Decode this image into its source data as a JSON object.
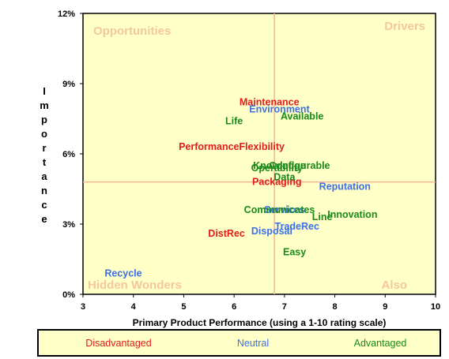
{
  "chart_data": {
    "type": "scatter",
    "xlabel": "Primary Product Performance (using a 1-10 rating scale)",
    "ylabel": "Importance",
    "xlim": [
      3,
      10
    ],
    "ylim": [
      0,
      12
    ],
    "x_ticks": [
      "3",
      "4",
      "5",
      "6",
      "7",
      "8",
      "9",
      "10"
    ],
    "y_ticks": [
      "0%",
      "3%",
      "6%",
      "9%",
      "12%"
    ],
    "divider": {
      "x": 6.8,
      "y": 4.8
    },
    "quadrants": {
      "top_left": "Opportunities",
      "top_right": "Drivers",
      "bottom_left": "Hidden Wonders",
      "bottom_right": "Also"
    },
    "legend": [
      {
        "name": "Disadvantaged",
        "color": "#e21b1b"
      },
      {
        "name": "Neutral",
        "color": "#3d6fe6"
      },
      {
        "name": "Advantaged",
        "color": "#1a8a1a"
      }
    ],
    "series": [
      {
        "name": "Disadvantaged",
        "color": "#e21b1b",
        "points": [
          {
            "label": "Maintenance",
            "x": 6.7,
            "y": 8.2
          },
          {
            "label": "Performance",
            "x": 5.5,
            "y": 6.3
          },
          {
            "label": "Flexibility",
            "x": 6.55,
            "y": 6.3
          },
          {
            "label": "Packaging",
            "x": 6.85,
            "y": 4.8
          },
          {
            "label": "DistRec",
            "x": 5.85,
            "y": 2.6
          }
        ]
      },
      {
        "name": "Neutral",
        "color": "#3d6fe6",
        "points": [
          {
            "label": "Environment",
            "x": 6.9,
            "y": 7.9
          },
          {
            "label": "Reputation",
            "x": 8.2,
            "y": 4.6
          },
          {
            "label": "Services",
            "x": 7.0,
            "y": 3.6
          },
          {
            "label": "TradeRec",
            "x": 7.25,
            "y": 2.9
          },
          {
            "label": "Disposal",
            "x": 6.75,
            "y": 2.7
          },
          {
            "label": "Recycle",
            "x": 3.8,
            "y": 0.9
          }
        ]
      },
      {
        "name": "Advantaged",
        "color": "#1a8a1a",
        "points": [
          {
            "label": "Available",
            "x": 7.35,
            "y": 7.6
          },
          {
            "label": "Life",
            "x": 6.0,
            "y": 7.4
          },
          {
            "label": "Knowledge",
            "x": 6.9,
            "y": 5.5
          },
          {
            "label": "Configurable",
            "x": 7.3,
            "y": 5.5
          },
          {
            "label": "Operability",
            "x": 6.85,
            "y": 5.4
          },
          {
            "label": "Data",
            "x": 7.0,
            "y": 5.0
          },
          {
            "label": "Communicates",
            "x": 6.9,
            "y": 3.6
          },
          {
            "label": "Line",
            "x": 7.75,
            "y": 3.3
          },
          {
            "label": "Innovation",
            "x": 8.35,
            "y": 3.4
          },
          {
            "label": "Easy",
            "x": 7.2,
            "y": 1.8
          }
        ]
      }
    ]
  }
}
